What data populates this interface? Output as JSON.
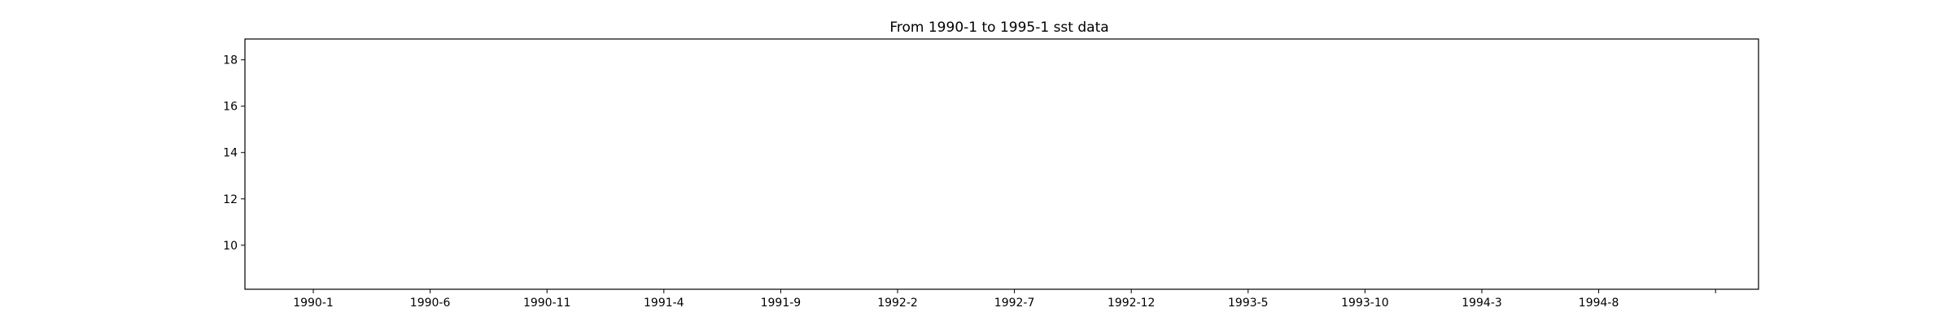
{
  "chart_data": {
    "type": "line",
    "title": "From 1990-1 to 1995-1 sst data",
    "xlabel": "",
    "ylabel": "",
    "x_tick_labels": [
      "1990-1",
      "1990-6",
      "1990-11",
      "1991-4",
      "1991-9",
      "1992-2",
      "1992-7",
      "1992-12",
      "1993-5",
      "1993-10",
      "1994-3",
      "1994-8",
      ""
    ],
    "y_ticks": [
      10,
      12,
      14,
      16,
      18
    ],
    "ylim": [
      8.1,
      18.9
    ],
    "series": [],
    "grid": false,
    "legend": false
  }
}
